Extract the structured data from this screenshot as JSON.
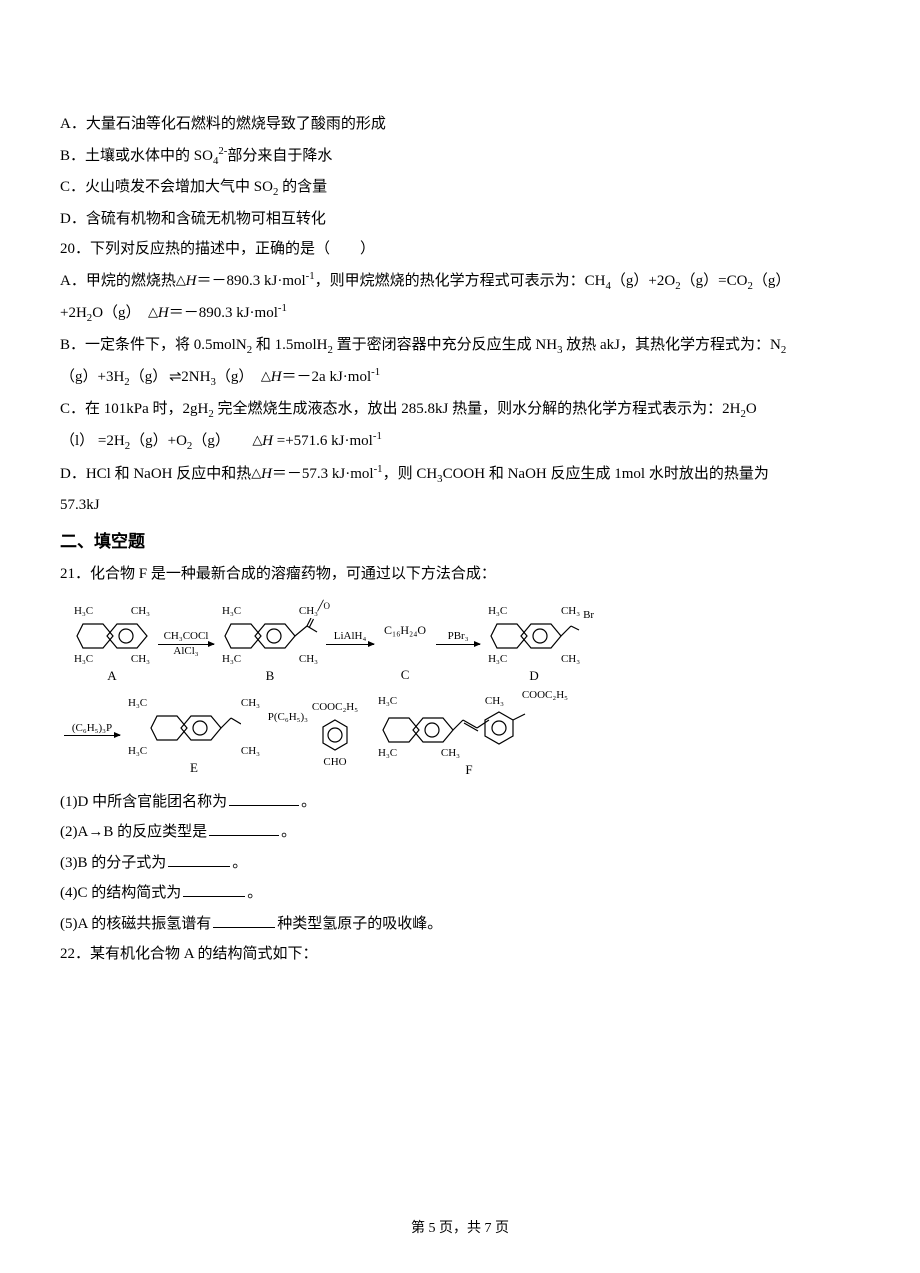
{
  "q19": {
    "optA": "A．大量石油等化石燃料的燃烧导致了酸雨的形成",
    "optB_pre": "B．土壤或水体中的 SO",
    "optB_sub": "4",
    "optB_sup": "2-",
    "optB_post": "部分来自于降水",
    "optC_pre": "C．火山喷发不会增加大气中 SO",
    "optC_sub": "2",
    "optC_post": " 的含量",
    "optD": "D．含硫有机物和含硫无机物可相互转化"
  },
  "q20": {
    "stem": "20．下列对反应热的描述中，正确的是（　　）",
    "A_1a": "A．甲烷的燃烧热",
    "A_1b": "＝－890.3 kJ·mol",
    "A_1c": "，则甲烷燃烧的热化学方程式可表示为：CH",
    "A_eq_tail": "（g）+2O",
    "A_eq_tail2": "（g）=CO",
    "A_eq_tail3": "（g）",
    "A_2a": "+2H",
    "A_2b": "O（g）　",
    "A_2c": "＝－890.3 kJ·mol",
    "B_1a": "B．一定条件下，将 0.5molN",
    "B_1b": " 和 1.5molH",
    "B_1c": " 置于密闭容器中充分反应生成 NH",
    "B_1d": " 放热 akJ，其热化学方程式为：N",
    "B_2a": "（g）+3H",
    "B_2b": "（g）",
    "B_2c": " 2NH",
    "B_2d": "（g）　",
    "B_2e": "＝－2a kJ·mol",
    "C_1a": "C．在 101kPa 时，2gH",
    "C_1b": " 完全燃烧生成液态水，放出 285.8kJ 热量，则水分解的热化学方程式表示为：2H",
    "C_1c": "O",
    "C_2a": "（l） =2H",
    "C_2b": "（g）+O",
    "C_2c": "（g）　　",
    "C_2d": " =+571.6 kJ·mol",
    "D_1a": "D．HCl 和 NaOH 反应中和热",
    "D_1b": "＝－57.3 kJ·mol",
    "D_1c": "，则 CH",
    "D_1d": "COOH 和 NaOH 反应生成 1mol 水时放出的热量为",
    "D_2": "57.3kJ"
  },
  "section2": "二、填空题",
  "q21": {
    "stem": "21．化合物 F 是一种最新合成的溶瘤药物，可通过以下方法合成：",
    "sub1_a": "(1)D 中所含官能团名称为",
    "sub1_b": "。",
    "sub2_a": "(2)A→B 的反应类型是",
    "sub2_b": "。",
    "sub3_a": "(3)B 的分子式为",
    "sub3_b": "。",
    "sub4_a": "(4)C 的结构简式为",
    "sub4_b": "。",
    "sub5_a": "(5)A 的核磁共振氢谱有",
    "sub5_b": "种类型氢原子的吸收峰。"
  },
  "diagram": {
    "ch3": "H₃C",
    "ch3r": "CH₃",
    "labels": {
      "A": "A",
      "B": "B",
      "C": "C",
      "D": "D",
      "E": "E",
      "F": "F"
    },
    "arrow1_top": "CH₃COCl",
    "arrow1_bot": "AlCl₃",
    "arrow2_top": "LiAlH₄",
    "C_formula": "C₁₆H₂₄O",
    "arrow3_top": "PBr₃",
    "B_subst": "O",
    "B_subst_pre": "",
    "D_subst": "Br",
    "arrow4_top": "(C₆H₅)₃P",
    "E_subst": "P(C₆H₅)₃",
    "benz_top": "COOC₂H₅",
    "benz_bot": "CHO",
    "F_subst": "COOC₂H₅"
  },
  "q22": "22．某有机化合物 A 的结构简式如下：",
  "footer": {
    "pre": "第 ",
    "page": "5",
    "mid": " 页，共 ",
    "total": "7",
    "post": " 页"
  },
  "style": {
    "blank_w1": 70,
    "blank_w2": 62
  }
}
